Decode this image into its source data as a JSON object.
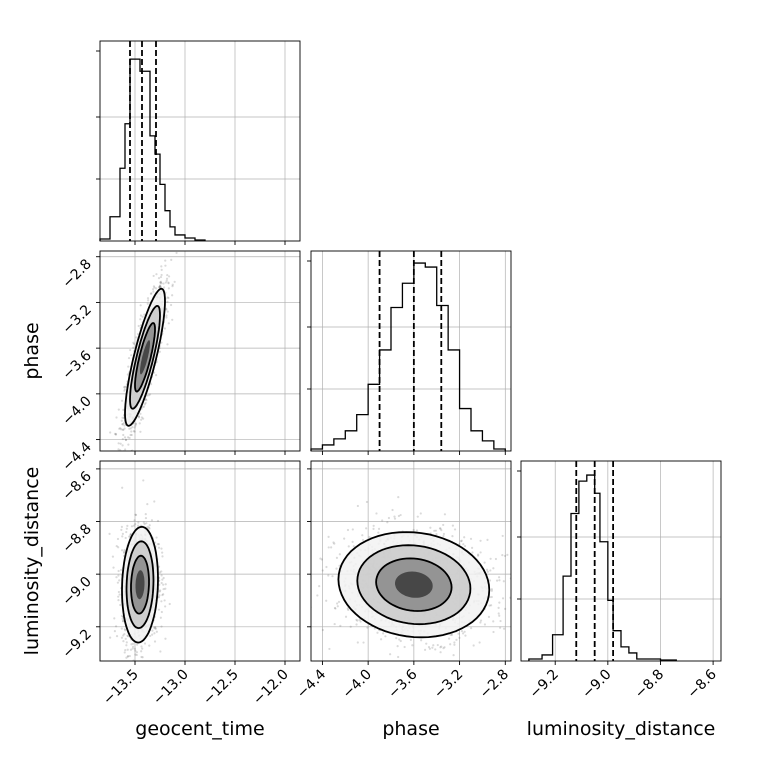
{
  "chart_data": {
    "type": "corner",
    "parameters": [
      "geocent_time",
      "phase",
      "luminosity_distance"
    ],
    "ranges": {
      "geocent_time": [
        -13.85,
        -11.85
      ],
      "phase": [
        -4.5,
        -2.75
      ],
      "luminosity_distance": [
        -9.33,
        -8.57
      ]
    },
    "ticks": {
      "geocent_time": [
        "−13.5",
        "−13.0",
        "−12.5",
        "−12.0"
      ],
      "phase": [
        "−4.4",
        "−4.0",
        "−3.6",
        "−3.2",
        "−2.8"
      ],
      "luminosity_distance": [
        "−9.2",
        "−9.0",
        "−8.8",
        "−8.6"
      ]
    },
    "tick_values": {
      "geocent_time": [
        -13.5,
        -13.0,
        -12.5,
        -12.0
      ],
      "phase": [
        -4.4,
        -4.0,
        -3.6,
        -3.2,
        -2.8
      ],
      "luminosity_distance": [
        -9.2,
        -9.0,
        -8.8,
        -8.6
      ]
    },
    "quantiles": {
      "geocent_time": [
        -13.55,
        -13.43,
        -13.29
      ],
      "phase": [
        -3.9,
        -3.6,
        -3.36
      ],
      "luminosity_distance": [
        -9.12,
        -9.05,
        -8.98
      ]
    },
    "marginals": {
      "geocent_time": {
        "edges": [
          -13.85,
          -13.75,
          -13.65,
          -13.6,
          -13.55,
          -13.5,
          -13.45,
          -13.4,
          -13.35,
          -13.3,
          -13.25,
          -13.2,
          -13.15,
          -13.1,
          -13.0,
          -12.9,
          -12.8
        ],
        "counts": [
          0.01,
          0.12,
          0.36,
          0.58,
          0.9,
          0.9,
          0.84,
          0.84,
          0.52,
          0.43,
          0.28,
          0.15,
          0.07,
          0.03,
          0.015,
          0.005
        ]
      },
      "phase": {
        "edges": [
          -4.5,
          -4.4,
          -4.3,
          -4.2,
          -4.1,
          -4.0,
          -3.9,
          -3.8,
          -3.7,
          -3.6,
          -3.5,
          -3.4,
          -3.3,
          -3.2,
          -3.1,
          -3.0,
          -2.9,
          -2.8
        ],
        "counts": [
          0.01,
          0.03,
          0.06,
          0.1,
          0.18,
          0.33,
          0.5,
          0.71,
          0.83,
          0.93,
          0.91,
          0.72,
          0.5,
          0.21,
          0.1,
          0.05,
          0.01
        ]
      },
      "luminosity_distance": {
        "edges": [
          -9.3,
          -9.25,
          -9.21,
          -9.17,
          -9.14,
          -9.11,
          -9.08,
          -9.05,
          -9.03,
          -9.0,
          -8.98,
          -8.95,
          -8.92,
          -8.89,
          -8.85,
          -8.8,
          -8.74
        ],
        "counts": [
          0.01,
          0.03,
          0.13,
          0.42,
          0.73,
          0.89,
          0.92,
          0.83,
          0.59,
          0.3,
          0.15,
          0.07,
          0.04,
          0.01,
          0.01,
          0.005
        ]
      }
    },
    "pairs": [
      {
        "x": "geocent_time",
        "y": "phase",
        "center": [
          -13.4,
          -3.68
        ],
        "sigma": [
          0.1,
          0.3
        ],
        "rho": 0.82,
        "contour_levels": [
          0.5,
          1.0,
          1.5,
          2.0
        ]
      },
      {
        "x": "geocent_time",
        "y": "luminosity_distance",
        "center": [
          -13.45,
          -9.04
        ],
        "sigma": [
          0.09,
          0.11
        ],
        "rho": 0.1,
        "contour_levels": [
          0.5,
          1.0,
          1.5,
          2.0
        ]
      },
      {
        "x": "phase",
        "y": "luminosity_distance",
        "center": [
          -3.6,
          -9.04
        ],
        "sigma": [
          0.33,
          0.1
        ],
        "rho": -0.1,
        "contour_levels": [
          0.5,
          1.0,
          1.5,
          2.0
        ]
      }
    ],
    "xlabel_bottom": [
      "geocent_time",
      "phase",
      "luminosity_distance"
    ],
    "ylabel_left": [
      "phase",
      "luminosity_distance"
    ],
    "grid": true
  }
}
